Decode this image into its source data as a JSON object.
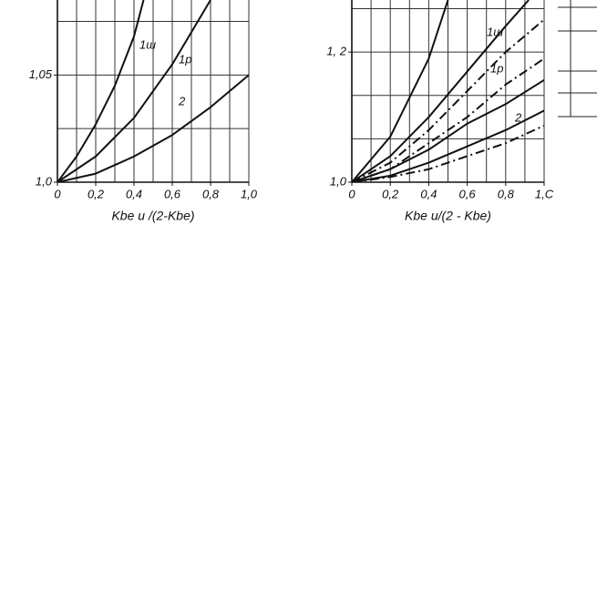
{
  "chart_data": [
    {
      "type": "line",
      "xlabel": "Kbe u /(2-Kbe)",
      "xlim": [
        0,
        1.0
      ],
      "ylim": [
        1.0,
        1.085
      ],
      "xticks": [
        {
          "value": 0,
          "label": "0"
        },
        {
          "value": 0.2,
          "label": "0,2"
        },
        {
          "value": 0.4,
          "label": "0,4"
        },
        {
          "value": 0.6,
          "label": "0,6"
        },
        {
          "value": 0.8,
          "label": "0,8"
        },
        {
          "value": 1.0,
          "label": "1,0"
        }
      ],
      "yticks": [
        {
          "value": 1.0,
          "label": "1,0"
        },
        {
          "value": 1.05,
          "label": "1,05"
        }
      ],
      "xgrid": [
        0,
        0.1,
        0.2,
        0.3,
        0.4,
        0.5,
        0.6,
        0.7,
        0.8,
        0.9,
        1.0
      ],
      "ygrid": [
        1.0,
        1.025,
        1.05,
        1.075
      ],
      "annotations": [
        "1ш",
        "1p",
        "2"
      ],
      "series": [
        {
          "color": "#111",
          "style": "solid",
          "x": [
            0,
            0.1,
            0.2,
            0.3,
            0.4,
            0.45
          ],
          "values": [
            1.0,
            1.012,
            1.027,
            1.045,
            1.068,
            1.085
          ]
        },
        {
          "color": "#111",
          "style": "solid",
          "x": [
            0,
            0.2,
            0.4,
            0.6,
            0.8
          ],
          "values": [
            1.0,
            1.012,
            1.03,
            1.055,
            1.085
          ]
        },
        {
          "color": "#111",
          "style": "solid",
          "x": [
            0,
            0.2,
            0.4,
            0.6,
            0.8,
            1.0
          ],
          "values": [
            1.0,
            1.004,
            1.012,
            1.022,
            1.035,
            1.05
          ]
        }
      ]
    },
    {
      "type": "line",
      "xlabel": "Kbe u/(2 - Kbe)",
      "xlim": [
        0,
        1.0
      ],
      "ylim": [
        1.0,
        1.28
      ],
      "xticks": [
        {
          "value": 0,
          "label": "0"
        },
        {
          "value": 0.2,
          "label": "0,2"
        },
        {
          "value": 0.4,
          "label": "0,4"
        },
        {
          "value": 0.6,
          "label": "0,6"
        },
        {
          "value": 0.8,
          "label": "0,8"
        },
        {
          "value": 1.0,
          "label": "1,C"
        }
      ],
      "yticks": [
        {
          "value": 1.0,
          "label": "1,0"
        },
        {
          "value": 1.2,
          "label": "1, 2"
        }
      ],
      "xgrid": [
        0,
        0.1,
        0.2,
        0.3,
        0.4,
        0.5,
        0.6,
        0.7,
        0.8,
        0.9,
        1.0
      ],
      "ygrid": [
        1.0,
        1.0667,
        1.1333,
        1.2,
        1.2667
      ],
      "annotations": [
        "1ш",
        "1p",
        "2"
      ],
      "series": [
        {
          "color": "#111",
          "style": "solid",
          "x": [
            0,
            0.2,
            0.4,
            0.5
          ],
          "values": [
            1.0,
            1.07,
            1.19,
            1.28
          ]
        },
        {
          "color": "#111",
          "style": "solid",
          "x": [
            0,
            0.2,
            0.4,
            0.6,
            0.8,
            0.92
          ],
          "values": [
            1.0,
            1.04,
            1.1,
            1.17,
            1.24,
            1.28
          ]
        },
        {
          "color": "#111",
          "style": "dashdot",
          "x": [
            0,
            0.2,
            0.4,
            0.6,
            0.8,
            1.0
          ],
          "values": [
            1.0,
            1.03,
            1.08,
            1.14,
            1.2,
            1.25
          ]
        },
        {
          "color": "#111",
          "style": "dashdot",
          "x": [
            0,
            0.2,
            0.4,
            0.6,
            0.8,
            1.0
          ],
          "values": [
            1.0,
            1.02,
            1.06,
            1.1,
            1.15,
            1.19
          ]
        },
        {
          "color": "#111",
          "style": "solid",
          "x": [
            0,
            0.2,
            0.4,
            0.6,
            0.8,
            1.0
          ],
          "values": [
            1.0,
            1.02,
            1.05,
            1.09,
            1.12,
            1.157
          ]
        },
        {
          "color": "#111",
          "style": "solid",
          "x": [
            0,
            0.2,
            0.4,
            0.6,
            0.8,
            1.0
          ],
          "values": [
            1.0,
            1.01,
            1.03,
            1.055,
            1.08,
            1.11
          ]
        },
        {
          "color": "#111",
          "style": "dashdot",
          "x": [
            0,
            0.2,
            0.4,
            0.6,
            0.8,
            1.0
          ],
          "values": [
            1.0,
            1.008,
            1.02,
            1.04,
            1.06,
            1.087
          ]
        }
      ]
    }
  ]
}
